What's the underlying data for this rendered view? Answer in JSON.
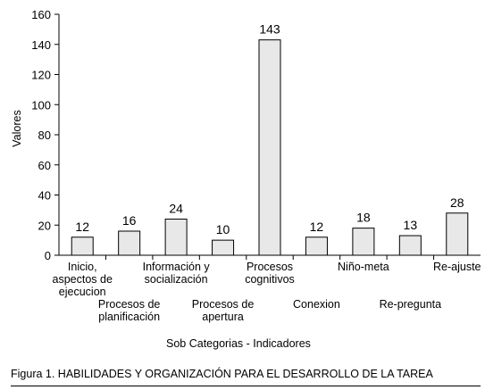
{
  "chart_data": {
    "type": "bar",
    "categories": [
      "Inicio,\naspectos de\nejecucion",
      "Procesos de\nplanificación",
      "Información y\nsocialización",
      "Procesos de\napertura",
      "Procesos\ncognitivos",
      "Conexion",
      "Niño-meta",
      "Re-pregunta",
      "Re-ajuste"
    ],
    "values": [
      12,
      16,
      24,
      10,
      143,
      12,
      18,
      13,
      28
    ],
    "data_labels": [
      "12",
      "16",
      "24",
      "10",
      "143",
      "12",
      "18",
      "13",
      "28"
    ],
    "ylim": [
      0,
      160
    ],
    "yticks": [
      0,
      20,
      40,
      60,
      80,
      100,
      120,
      140,
      160
    ],
    "ylabel": "Valores",
    "xlabel": "Sob Categorias - Indicadores",
    "grid": false,
    "bar_color": "#e8e8e8",
    "bar_stroke": "#000000"
  },
  "caption": "Figura 1. HABILIDADES  Y ORGANIZACIÓN PARA EL DESARROLLO DE LA TAREA"
}
